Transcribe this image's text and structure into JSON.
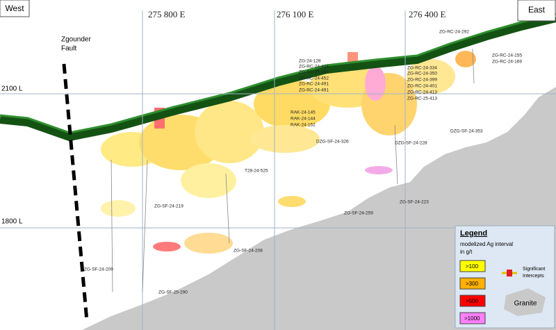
{
  "header": {
    "west": "West",
    "east": "East",
    "eastings": [
      "275 800 E",
      "276 100 E",
      "276 400 E"
    ],
    "levels": [
      "2100 L",
      "1800 L"
    ],
    "fault": [
      "Zgounder",
      "Fault"
    ]
  },
  "drill_holes": [
    "ZG-RC-24-292",
    "ZG-RC-24-155",
    "ZG-RC-24-169",
    "ZG-24-128",
    "ZG-RC-24-424",
    "ZG-RC-25-469",
    "ZG-RC-24-452",
    "ZG-RC-24-491",
    "ZG-RC-24-491",
    "ZG-RC-24-334",
    "ZG-RC-24-350",
    "ZG-RC-24-399",
    "ZG-RC-24-401",
    "ZG-RC-24-413",
    "ZG-RC-25-413",
    "RAK-24-145",
    "RAK-24-144",
    "RAK-24-152",
    "DZG-SF-24-326",
    "DZG-SF-24-228",
    "DZG-SF-24-353",
    "T28-24-525",
    "ZG-SF-24-219",
    "ZG-SF-24-259",
    "ZG-SF-24-223",
    "ZG-SF-24-208",
    "ZG-SF-24-209",
    "ZG-SF-25-290"
  ],
  "legend": {
    "title": "Legend",
    "subtitle": "modelized Ag interval",
    "unit": "in g/t",
    "classes": [
      ">100",
      ">300",
      ">500",
      ">1000"
    ],
    "intercepts": [
      "Significant",
      "Intercepts"
    ],
    "granite": "Granite"
  }
}
